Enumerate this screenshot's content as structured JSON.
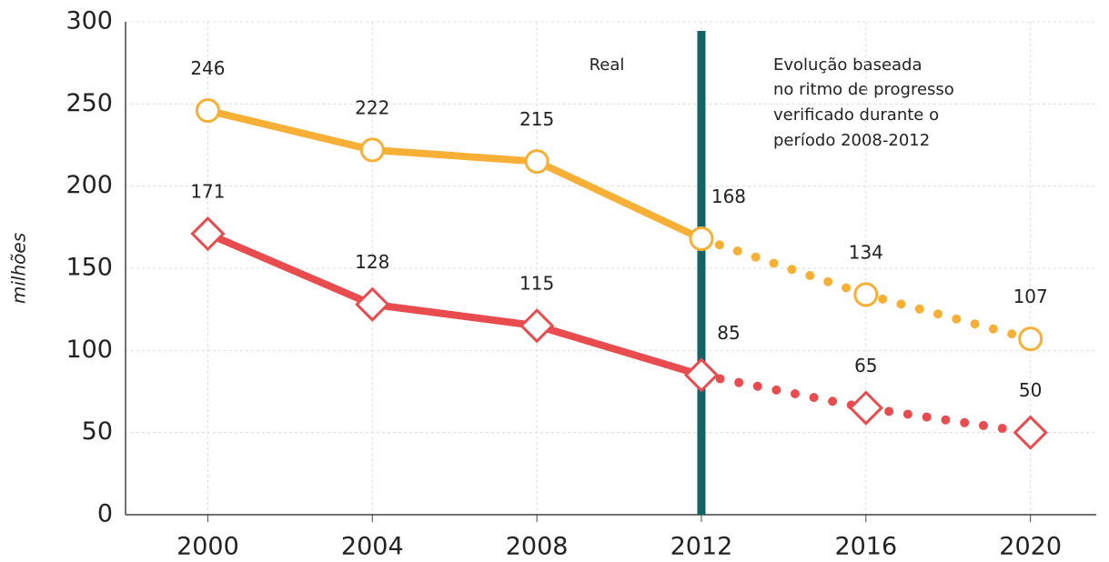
{
  "chart_data": {
    "type": "line",
    "y_label": "milhões",
    "x": [
      2000,
      2004,
      2008,
      2012,
      2016,
      2020
    ],
    "series": [
      {
        "color": "#f7b035",
        "marker": "circle",
        "values": [
          246,
          222,
          215,
          168,
          134,
          107
        ]
      },
      {
        "color": "#e84c4f",
        "marker": "diamond",
        "values": [
          171,
          128,
          115,
          85,
          65,
          50
        ]
      }
    ],
    "divider_x": 2012,
    "divider_color": "#146466",
    "annotations": [
      "Real",
      "Evolução baseada",
      "no ritmo de progresso",
      "verificado durante o",
      "período 2008-2012"
    ],
    "xlim": [
      1998,
      2021.6
    ],
    "xticks": [
      2000,
      2004,
      2008,
      2012,
      2016,
      2020
    ],
    "ylim": [
      0,
      300
    ],
    "yticks": [
      0,
      50,
      100,
      150,
      200,
      250,
      300
    ],
    "grid": true
  }
}
